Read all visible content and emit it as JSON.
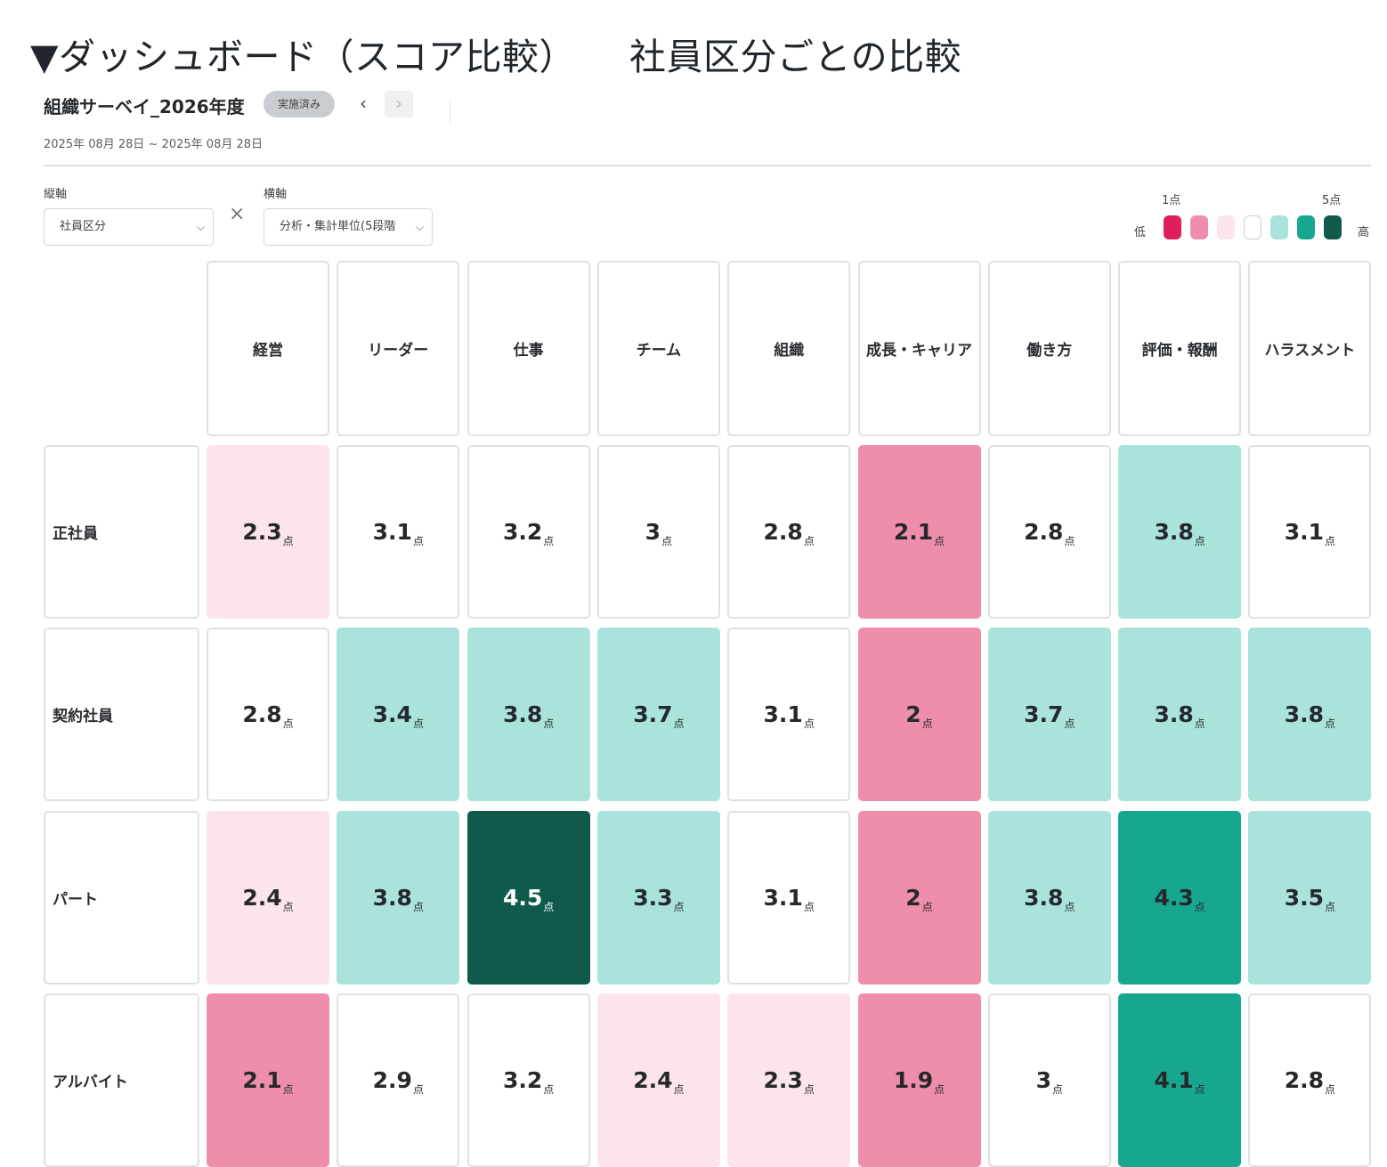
{
  "heading": {
    "left": "▼ダッシュボード（スコア比較）",
    "right": "社員区分ごとの比較"
  },
  "survey": {
    "title": "組織サーベイ_2026年度",
    "status_badge": "実施済み",
    "prev_icon": "chevron-left-icon",
    "next_icon": "chevron-right-icon",
    "date_range": "2025年 08月 28日 ~ 2025年 08月 28日"
  },
  "axes": {
    "vertical_label": "縦軸",
    "vertical_value": "社員区分",
    "horizontal_label": "横軸",
    "horizontal_value": "分析・集計単位(5段階",
    "swap_icon": "close-icon"
  },
  "legend": {
    "min_label": "1点",
    "max_label": "5点",
    "low_label": "低",
    "high_label": "高",
    "colors": [
      "#de1f58",
      "#ee8eab",
      "#fbe4ec",
      "#ffffff",
      "#a9e3dc",
      "#17a78f",
      "#0f5a4b"
    ]
  },
  "unit": "点",
  "columns": [
    "経営",
    "リーダー",
    "仕事",
    "チーム",
    "組織",
    "成長・キャリア",
    "働き方",
    "評価・報酬",
    "ハラスメント"
  ],
  "rows": [
    {
      "label": "正社員",
      "values": [
        "2.3",
        "3.1",
        "3.2",
        "3",
        "2.8",
        "2.1",
        "2.8",
        "3.8",
        "3.1"
      ],
      "levels": [
        2,
        3,
        3,
        3,
        3,
        1,
        3,
        4,
        3
      ]
    },
    {
      "label": "契約社員",
      "values": [
        "2.8",
        "3.4",
        "3.8",
        "3.7",
        "3.1",
        "2",
        "3.7",
        "3.8",
        "3.8"
      ],
      "levels": [
        3,
        4,
        4,
        4,
        3,
        1,
        4,
        4,
        4
      ]
    },
    {
      "label": "パート",
      "values": [
        "2.4",
        "3.8",
        "4.5",
        "3.3",
        "3.1",
        "2",
        "3.8",
        "4.3",
        "3.5"
      ],
      "levels": [
        2,
        4,
        6,
        4,
        3,
        1,
        4,
        5,
        4
      ]
    },
    {
      "label": "アルバイト",
      "values": [
        "2.1",
        "2.9",
        "3.2",
        "2.4",
        "2.3",
        "1.9",
        "3",
        "4.1",
        "2.8"
      ],
      "levels": [
        1,
        3,
        3,
        2,
        2,
        1,
        3,
        5,
        3
      ]
    }
  ]
}
